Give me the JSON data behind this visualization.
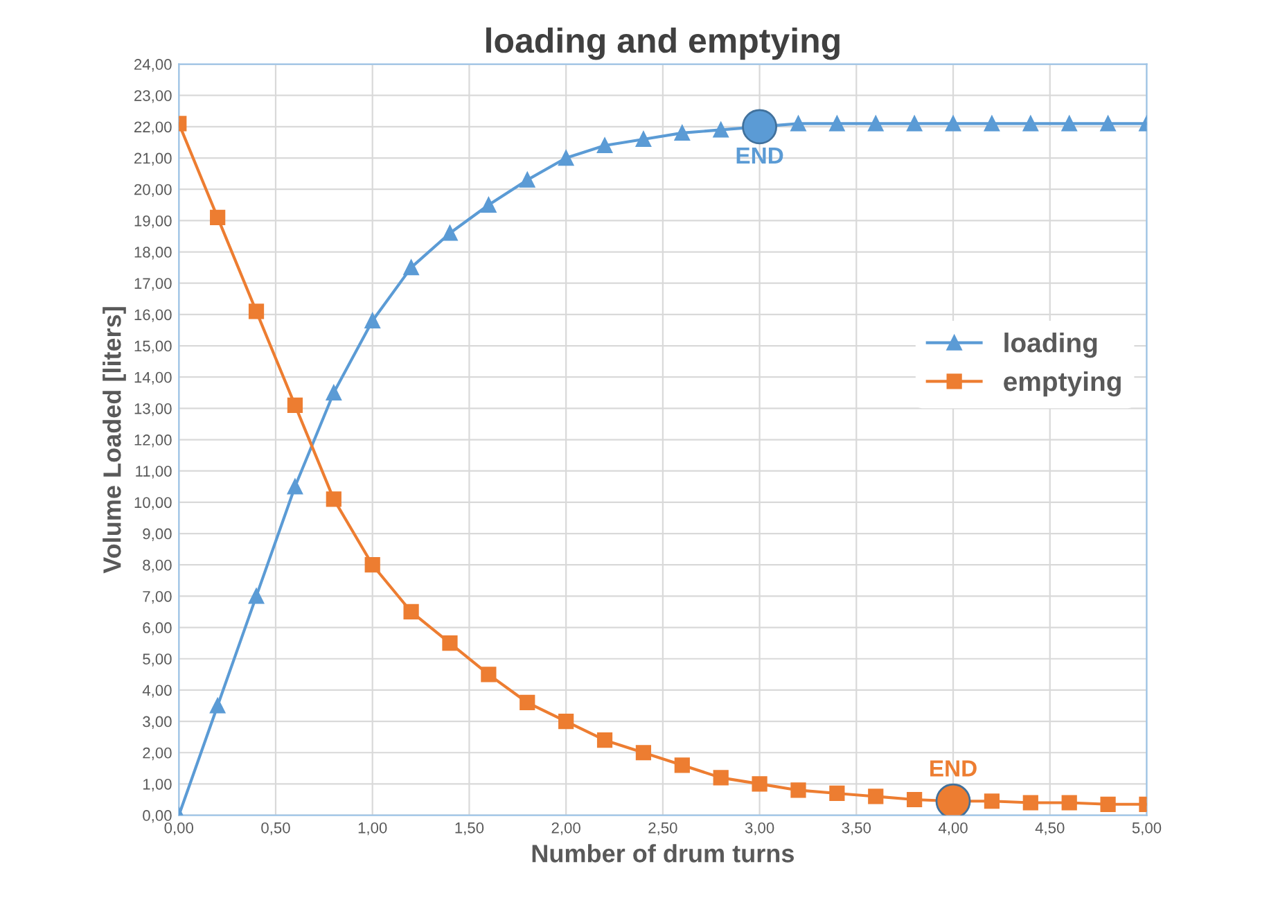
{
  "chart_data": {
    "type": "line",
    "title": "loading and emptying",
    "xlabel": "Number of drum turns",
    "ylabel": "Volume Loaded [liters]",
    "x": [
      0,
      0.2,
      0.4,
      0.6,
      0.8,
      1.0,
      1.2,
      1.4,
      1.6,
      1.8,
      2.0,
      2.2,
      2.4,
      2.6,
      2.8,
      3.0,
      3.2,
      3.4,
      3.6,
      3.8,
      4.0,
      4.2,
      4.4,
      4.6,
      4.8,
      5.0
    ],
    "series": [
      {
        "name": "loading",
        "color": "#5b9bd5",
        "marker": "triangle",
        "values": [
          0,
          3.5,
          7.0,
          10.5,
          13.5,
          15.8,
          17.5,
          18.6,
          19.5,
          20.3,
          21.0,
          21.4,
          21.6,
          21.8,
          21.9,
          22.0,
          22.1,
          22.1,
          22.1,
          22.1,
          22.1,
          22.1,
          22.1,
          22.1,
          22.1,
          22.1
        ]
      },
      {
        "name": "emptying",
        "color": "#ed7d31",
        "marker": "square",
        "values": [
          22.1,
          19.1,
          16.1,
          13.1,
          10.1,
          8.0,
          6.5,
          5.5,
          4.5,
          3.6,
          3.0,
          2.4,
          2.0,
          1.6,
          1.2,
          1.0,
          0.8,
          0.7,
          0.6,
          0.5,
          0.45,
          0.45,
          0.4,
          0.4,
          0.35,
          0.35
        ]
      },
      {
        "type": "scatter",
        "marker": "circle",
        "x": [
          3.0,
          4.0
        ],
        "colors": [
          "#5b9bd5",
          "#ed7d31"
        ],
        "values": [
          22.0,
          0.45
        ]
      }
    ],
    "annotations": [
      {
        "text": "END",
        "x": 3.0,
        "y": 22.0
      },
      {
        "text": "END",
        "x": 4.0,
        "y": 0.45
      }
    ],
    "xlim": [
      0,
      5
    ],
    "xticks": [
      {
        "value": 0,
        "label": "0,00"
      },
      {
        "value": 0.5,
        "label": "0,50"
      },
      {
        "value": 1,
        "label": "1,00"
      },
      {
        "value": 1.5,
        "label": "1,50"
      },
      {
        "value": 2,
        "label": "2,00"
      },
      {
        "value": 2.5,
        "label": "2,50"
      },
      {
        "value": 3,
        "label": "3,00"
      },
      {
        "value": 3.5,
        "label": "3,50"
      },
      {
        "value": 4,
        "label": "4,00"
      },
      {
        "value": 4.5,
        "label": "4,50"
      },
      {
        "value": 5,
        "label": "5,00"
      }
    ],
    "ylim": [
      0,
      24
    ],
    "yticks": [
      {
        "value": 0,
        "label": "0,00"
      },
      {
        "value": 1,
        "label": "1,00"
      },
      {
        "value": 2,
        "label": "2,00"
      },
      {
        "value": 3,
        "label": "3,00"
      },
      {
        "value": 4,
        "label": "4,00"
      },
      {
        "value": 5,
        "label": "5,00"
      },
      {
        "value": 6,
        "label": "6,00"
      },
      {
        "value": 7,
        "label": "7,00"
      },
      {
        "value": 8,
        "label": "8,00"
      },
      {
        "value": 9,
        "label": "9,00"
      },
      {
        "value": 10,
        "label": "10,00"
      },
      {
        "value": 11,
        "label": "11,00"
      },
      {
        "value": 12,
        "label": "12,00"
      },
      {
        "value": 13,
        "label": "13,00"
      },
      {
        "value": 14,
        "label": "14,00"
      },
      {
        "value": 15,
        "label": "15,00"
      },
      {
        "value": 16,
        "label": "16,00"
      },
      {
        "value": 17,
        "label": "17,00"
      },
      {
        "value": 18,
        "label": "18,00"
      },
      {
        "value": 19,
        "label": "19,00"
      },
      {
        "value": 20,
        "label": "20,00"
      },
      {
        "value": 21,
        "label": "21,00"
      },
      {
        "value": 22,
        "label": "22,00"
      },
      {
        "value": 23,
        "label": "23,00"
      },
      {
        "value": 24,
        "label": "24,00"
      }
    ],
    "grid": true,
    "legend": "right"
  }
}
